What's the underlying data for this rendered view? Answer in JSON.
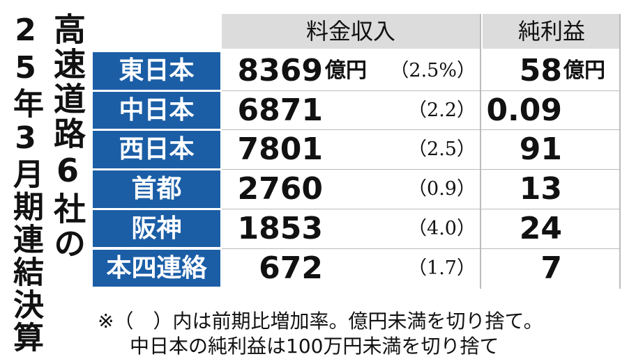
{
  "title": {
    "line1": "高速道路6社の",
    "line2": "25年3月期連結決算"
  },
  "table": {
    "headers": [
      "料金収入",
      "純利益"
    ],
    "rows": [
      {
        "name": "東日本",
        "revenue": "8369",
        "revenue_unit": "億円",
        "change": "（2.5%）",
        "net": "58",
        "net_unit": "億円"
      },
      {
        "name": "中日本",
        "revenue": "6871",
        "change": "（2.2）",
        "net": "0.09"
      },
      {
        "name": "西日本",
        "revenue": "7801",
        "change": "（2.5）",
        "net": "91"
      },
      {
        "name": "首都",
        "revenue": "2760",
        "change": "（0.9）",
        "net": "13"
      },
      {
        "name": "阪神",
        "revenue": "1853",
        "change": "（4.0）",
        "net": "24"
      },
      {
        "name": "本四連絡",
        "revenue": "672",
        "change": "（1.7）",
        "net": "7"
      }
    ]
  },
  "notes": [
    "※（　）内は前期比増加率。億円未満を切り捨て。",
    "中日本の純利益は100万円未満を切り捨て"
  ]
}
